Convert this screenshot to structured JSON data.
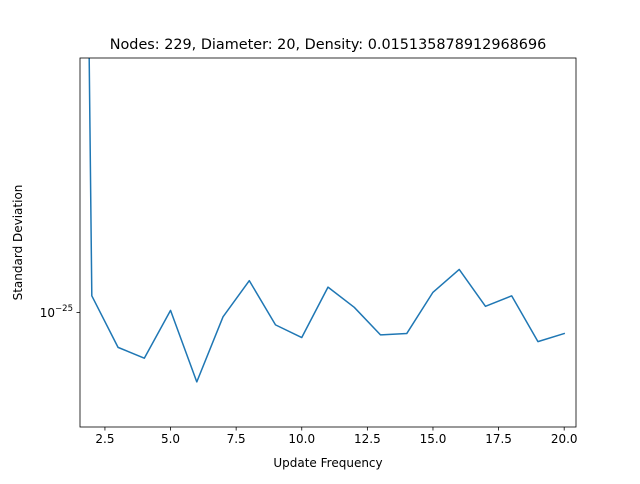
{
  "chart_data": {
    "type": "line",
    "title": "Nodes: 229, Diameter: 20, Density: 0.015135878912968696",
    "xlabel": "Update Frequency",
    "ylabel": "Standard Deviation",
    "x_ticks": [
      2.5,
      5.0,
      7.5,
      10.0,
      12.5,
      15.0,
      17.5,
      20.0
    ],
    "x_tick_labels": [
      "2.5",
      "5.0",
      "7.5",
      "10.0",
      "12.5",
      "15.0",
      "17.5",
      "20.0"
    ],
    "xlim": [
      1.55,
      20.45
    ],
    "y_scale": "log",
    "y_tick_base": "10",
    "y_tick_exponent": "−25",
    "y_ticks": [
      1e-25
    ],
    "ylim": [
      3.4e-26,
      1.1e-24
    ],
    "grid": false,
    "series": [
      {
        "color": "#1f77b4",
        "x": [
          1.9,
          2,
          3,
          4,
          5,
          6,
          7,
          8,
          9,
          10,
          11,
          12,
          13,
          14,
          15,
          16,
          17,
          18,
          19,
          20
        ],
        "y": [
          1.1e-24,
          1.17e-25,
          7.2e-26,
          6.5e-26,
          1.02e-25,
          5.2e-26,
          9.6e-26,
          1.35e-25,
          8.9e-26,
          7.9e-26,
          1.27e-25,
          1.05e-25,
          8.1e-26,
          8.2e-26,
          1.21e-25,
          1.5e-25,
          1.06e-25,
          1.17e-25,
          7.6e-26,
          8.2e-26
        ]
      }
    ]
  }
}
